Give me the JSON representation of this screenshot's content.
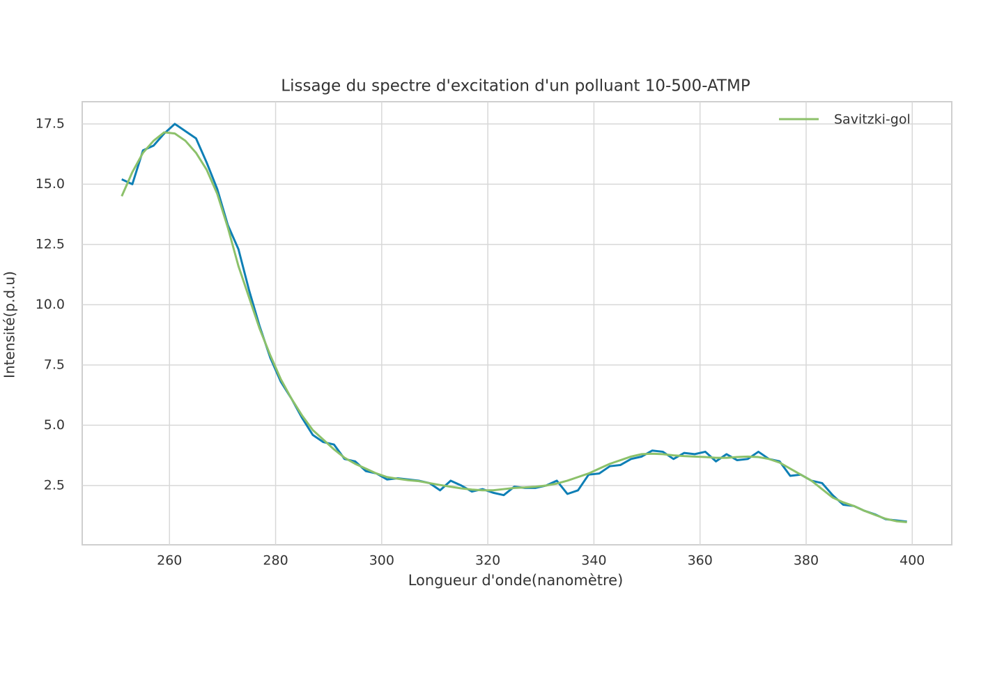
{
  "chart_data": {
    "type": "line",
    "title": "Lissage du spectre d'excitation d'un polluant 10-500-ATMP",
    "x_label": "Longueur d'onde(nanomètre)",
    "y_label": "Intensité(p.d.u)",
    "x": [
      251,
      253,
      255,
      257,
      259,
      261,
      263,
      265,
      267,
      269,
      271,
      273,
      275,
      277,
      279,
      281,
      283,
      285,
      287,
      289,
      291,
      293,
      295,
      297,
      299,
      301,
      303,
      305,
      307,
      309,
      311,
      313,
      315,
      317,
      319,
      321,
      323,
      325,
      327,
      329,
      331,
      333,
      335,
      337,
      339,
      341,
      343,
      345,
      347,
      349,
      351,
      353,
      355,
      357,
      359,
      361,
      363,
      365,
      367,
      369,
      371,
      373,
      375,
      377,
      379,
      381,
      383,
      385,
      387,
      389,
      391,
      393,
      395,
      397,
      399
    ],
    "series": [
      {
        "color": "#0e7fb5",
        "values": [
          15.2,
          15.0,
          16.4,
          16.6,
          17.1,
          17.5,
          17.2,
          16.9,
          15.9,
          14.8,
          13.3,
          12.3,
          10.6,
          9.1,
          7.8,
          6.8,
          6.1,
          5.3,
          4.6,
          4.3,
          4.2,
          3.6,
          3.5,
          3.1,
          3.0,
          2.75,
          2.8,
          2.75,
          2.7,
          2.6,
          2.3,
          2.7,
          2.5,
          2.25,
          2.35,
          2.2,
          2.1,
          2.45,
          2.4,
          2.4,
          2.5,
          2.7,
          2.15,
          2.3,
          2.95,
          3.0,
          3.3,
          3.35,
          3.6,
          3.7,
          3.95,
          3.9,
          3.6,
          3.85,
          3.8,
          3.9,
          3.5,
          3.8,
          3.55,
          3.6,
          3.9,
          3.6,
          3.5,
          2.9,
          2.95,
          2.7,
          2.6,
          2.1,
          1.7,
          1.65,
          1.45,
          1.3,
          1.1,
          1.05,
          1.0
        ]
      },
      {
        "name": "Savitzki-gol",
        "color": "#8cc16a",
        "values": [
          14.5,
          15.5,
          16.3,
          16.8,
          17.15,
          17.1,
          16.8,
          16.3,
          15.6,
          14.6,
          13.2,
          11.6,
          10.3,
          9.0,
          7.9,
          6.9,
          6.1,
          5.4,
          4.8,
          4.4,
          4.0,
          3.65,
          3.4,
          3.2,
          3.0,
          2.85,
          2.78,
          2.72,
          2.68,
          2.6,
          2.52,
          2.45,
          2.38,
          2.33,
          2.3,
          2.3,
          2.35,
          2.4,
          2.42,
          2.45,
          2.5,
          2.58,
          2.7,
          2.85,
          3.0,
          3.2,
          3.4,
          3.55,
          3.7,
          3.8,
          3.82,
          3.8,
          3.75,
          3.72,
          3.7,
          3.68,
          3.65,
          3.65,
          3.68,
          3.7,
          3.68,
          3.6,
          3.45,
          3.2,
          2.95,
          2.7,
          2.35,
          2.0,
          1.8,
          1.65,
          1.45,
          1.28,
          1.12,
          1.02,
          0.98
        ]
      }
    ],
    "xlim": [
      243.55,
      407.45
    ],
    "ylim": [
      0.04,
      18.42
    ],
    "xticks": [
      260,
      280,
      300,
      320,
      340,
      360,
      380,
      400
    ],
    "yticks": [
      2.5,
      {
        "value": 5,
        "label": "5.0"
      },
      7.5,
      {
        "value": 10,
        "label": "10.0"
      },
      12.5,
      {
        "value": 15,
        "label": "15.0"
      },
      17.5
    ],
    "grid": true,
    "legend": "upper-right"
  }
}
